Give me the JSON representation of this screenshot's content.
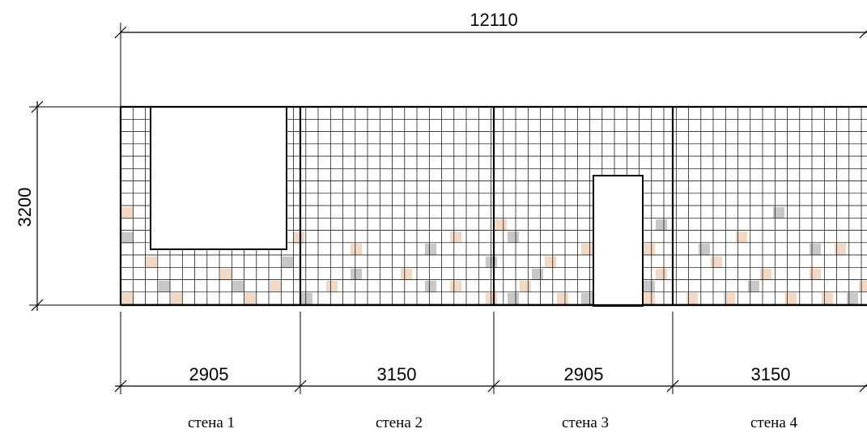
{
  "overall": {
    "length_label": "12110",
    "height_label": "3200"
  },
  "walls": [
    {
      "label": "стена 1",
      "width_label": "2905"
    },
    {
      "label": "стена 2",
      "width_label": "3150"
    },
    {
      "label": "стена 3",
      "width_label": "2905"
    },
    {
      "label": "стена 4",
      "width_label": "3150"
    }
  ],
  "colors": {
    "line": "#000000",
    "background": "#ffffff",
    "accent_tile_peach": "#f3d9c4",
    "accent_tile_gray": "#c8c8c8"
  }
}
